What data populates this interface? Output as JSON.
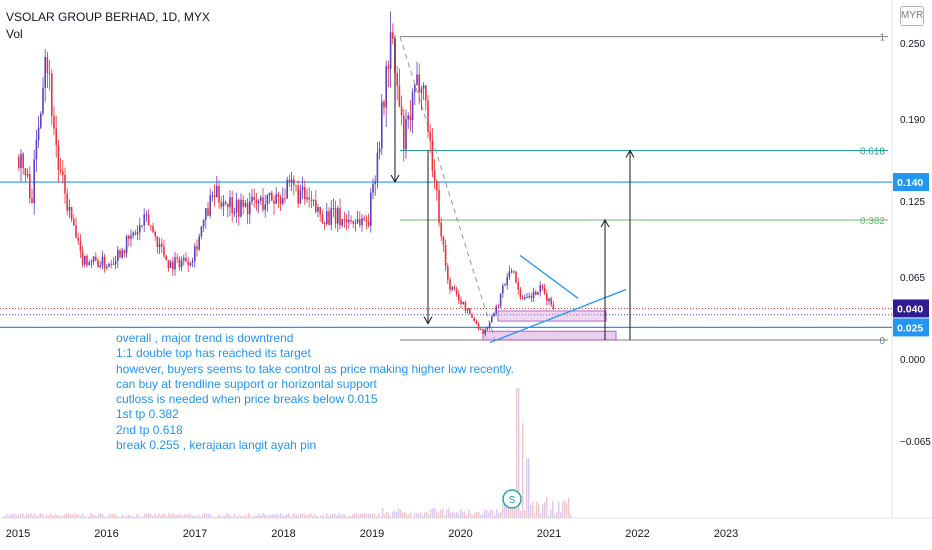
{
  "header": {
    "title": "VSOLAR GROUP BERHAD, 1D, MYX",
    "volume_label": "Vol",
    "currency_button": "MYR"
  },
  "annotation_lines": [
    "overall , major trend is downtrend",
    "1:1 double top has reached its target",
    "however, buyers seems to take control as price making higher low recently.",
    "can buy at trendline support or horizontal support",
    "cutloss is needed when price breaks below 0.015",
    "1st tp 0.382",
    "2nd tp 0.618",
    "break 0.255 , kerajaan langit ayah pin"
  ],
  "colors": {
    "up_candle": "#5b3fc4",
    "down_candle": "#e8323c",
    "horizontal_line": "#2196f3",
    "fib_618": "#26a69a",
    "fib_382": "#66bb6a",
    "range_box": "#ce93d8"
  },
  "chart_data": {
    "type": "candlestick",
    "symbol": "VSOLAR GROUP BERHAD",
    "interval": "1D",
    "exchange": "MYX",
    "currency": "MYR",
    "x_ticks": [
      "2015",
      "2016",
      "2017",
      "2018",
      "2019",
      "2020",
      "2021",
      "2022",
      "2023"
    ],
    "y_ticks": [
      0.25,
      0.19,
      0.125,
      0.065,
      0.0,
      -0.065
    ],
    "y_tick_labels": [
      "0.250",
      "0.190",
      "0.125",
      "0.065",
      "0.000",
      "−0.065"
    ],
    "ylim": [
      -0.13,
      0.27
    ],
    "price_badges": [
      {
        "value": 0.14,
        "label": "0.140",
        "color": "#2196f3"
      },
      {
        "value": 0.04,
        "label": "0.040",
        "color": "#311b92"
      },
      {
        "value": 0.025,
        "label": "0.025",
        "color": "#2196f3"
      }
    ],
    "fibonacci": [
      {
        "level": "1",
        "price": 0.255
      },
      {
        "level": "0.618",
        "price": 0.165
      },
      {
        "level": "0.382",
        "price": 0.11
      },
      {
        "level": "0",
        "price": 0.015
      }
    ],
    "horizontal_supports": [
      0.14,
      0.025
    ],
    "price_path": [
      {
        "date": "2015.0",
        "price": 0.16
      },
      {
        "date": "2015.15",
        "price": 0.13
      },
      {
        "date": "2015.3",
        "price": 0.25
      },
      {
        "date": "2015.45",
        "price": 0.15
      },
      {
        "date": "2015.7",
        "price": 0.08
      },
      {
        "date": "2016.0",
        "price": 0.075
      },
      {
        "date": "2016.2",
        "price": 0.09
      },
      {
        "date": "2016.45",
        "price": 0.11
      },
      {
        "date": "2016.7",
        "price": 0.075
      },
      {
        "date": "2016.95",
        "price": 0.08
      },
      {
        "date": "2017.2",
        "price": 0.13
      },
      {
        "date": "2017.5",
        "price": 0.12
      },
      {
        "date": "2017.8",
        "price": 0.125
      },
      {
        "date": "2018.1",
        "price": 0.135
      },
      {
        "date": "2018.4",
        "price": 0.115
      },
      {
        "date": "2018.7",
        "price": 0.11
      },
      {
        "date": "2018.95",
        "price": 0.11
      },
      {
        "date": "2019.1",
        "price": 0.19
      },
      {
        "date": "2019.2",
        "price": 0.255
      },
      {
        "date": "2019.35",
        "price": 0.17
      },
      {
        "date": "2019.55",
        "price": 0.23
      },
      {
        "date": "2019.7",
        "price": 0.14
      },
      {
        "date": "2019.85",
        "price": 0.06
      },
      {
        "date": "2020.1",
        "price": 0.035
      },
      {
        "date": "2020.25",
        "price": 0.02
      },
      {
        "date": "2020.4",
        "price": 0.04
      },
      {
        "date": "2020.55",
        "price": 0.075
      },
      {
        "date": "2020.7",
        "price": 0.045
      },
      {
        "date": "2020.9",
        "price": 0.055
      },
      {
        "date": "2021.05",
        "price": 0.04
      }
    ]
  }
}
